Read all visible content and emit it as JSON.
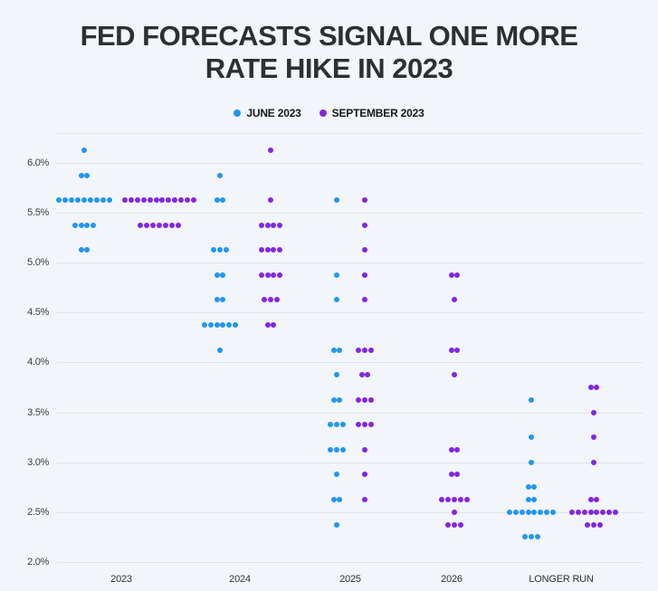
{
  "title": {
    "line1": "FED FORECASTS SIGNAL ONE MORE",
    "line2": "RATE HIKE IN 2023"
  },
  "legend": [
    {
      "label": "JUNE 2023",
      "color": "#2196f3"
    },
    {
      "label": "SEPTEMBER 2023",
      "color": "#8226e3"
    }
  ],
  "chart_data": {
    "type": "scatter",
    "subtype": "fed-dot-plot",
    "title": "FED FORECASTS SIGNAL ONE MORE RATE HIKE IN 2023",
    "legend_position": "top",
    "grid": true,
    "categories": [
      "2023",
      "2024",
      "2025",
      "2026",
      "LONGER RUN"
    ],
    "y_axis": {
      "unit": "%",
      "ylim": [
        2.0,
        6.3
      ],
      "ticks": [
        {
          "label": "6.0%",
          "value": 6.0
        },
        {
          "label": "5.5%",
          "value": 5.5
        },
        {
          "label": "5.0%",
          "value": 5.0
        },
        {
          "label": "4.5%",
          "value": 4.5
        },
        {
          "label": "4.0%",
          "value": 4.0
        },
        {
          "label": "3.5%",
          "value": 3.5
        },
        {
          "label": "3.0%",
          "value": 3.0
        },
        {
          "label": "2.5%",
          "value": 2.5
        },
        {
          "label": "2.0%",
          "value": 2.0
        }
      ]
    },
    "series": [
      {
        "name": "JUNE 2023",
        "color": "#2196f3",
        "points": {
          "2023": [
            {
              "rate": 6.125,
              "n": 1
            },
            {
              "rate": 5.875,
              "n": 2
            },
            {
              "rate": 5.625,
              "n": 9
            },
            {
              "rate": 5.375,
              "n": 4
            },
            {
              "rate": 5.125,
              "n": 2
            }
          ],
          "2024": [
            {
              "rate": 5.875,
              "n": 1
            },
            {
              "rate": 5.625,
              "n": 2
            },
            {
              "rate": 5.125,
              "n": 3
            },
            {
              "rate": 4.875,
              "n": 2
            },
            {
              "rate": 4.625,
              "n": 2
            },
            {
              "rate": 4.375,
              "n": 6
            },
            {
              "rate": 4.125,
              "n": 1
            }
          ],
          "2025": [
            {
              "rate": 5.625,
              "n": 1
            },
            {
              "rate": 4.875,
              "n": 1
            },
            {
              "rate": 4.625,
              "n": 1
            },
            {
              "rate": 4.125,
              "n": 2
            },
            {
              "rate": 3.875,
              "n": 1
            },
            {
              "rate": 3.625,
              "n": 2
            },
            {
              "rate": 3.375,
              "n": 3
            },
            {
              "rate": 3.125,
              "n": 3
            },
            {
              "rate": 2.875,
              "n": 1
            },
            {
              "rate": 2.625,
              "n": 2
            },
            {
              "rate": 2.375,
              "n": 1
            }
          ],
          "2026": [],
          "LONGER RUN": [
            {
              "rate": 3.625,
              "n": 1
            },
            {
              "rate": 3.25,
              "n": 1
            },
            {
              "rate": 3.0,
              "n": 1
            },
            {
              "rate": 2.75,
              "n": 2
            },
            {
              "rate": 2.625,
              "n": 2
            },
            {
              "rate": 2.5,
              "n": 8
            },
            {
              "rate": 2.25,
              "n": 3
            }
          ]
        }
      },
      {
        "name": "SEPTEMBER 2023",
        "color": "#8226e3",
        "points": {
          "2023": [
            {
              "rate": 5.625,
              "n": 12
            },
            {
              "rate": 5.375,
              "n": 7
            }
          ],
          "2024": [
            {
              "rate": 6.125,
              "n": 1
            },
            {
              "rate": 5.625,
              "n": 1
            },
            {
              "rate": 5.375,
              "n": 4
            },
            {
              "rate": 5.125,
              "n": 4
            },
            {
              "rate": 4.875,
              "n": 4
            },
            {
              "rate": 4.625,
              "n": 3
            },
            {
              "rate": 4.375,
              "n": 2
            }
          ],
          "2025": [
            {
              "rate": 5.625,
              "n": 1
            },
            {
              "rate": 5.375,
              "n": 1
            },
            {
              "rate": 5.125,
              "n": 1
            },
            {
              "rate": 4.875,
              "n": 1
            },
            {
              "rate": 4.625,
              "n": 1
            },
            {
              "rate": 4.125,
              "n": 3
            },
            {
              "rate": 3.875,
              "n": 2
            },
            {
              "rate": 3.625,
              "n": 3
            },
            {
              "rate": 3.375,
              "n": 3
            },
            {
              "rate": 3.125,
              "n": 1
            },
            {
              "rate": 2.875,
              "n": 1
            },
            {
              "rate": 2.625,
              "n": 1
            }
          ],
          "2026": [
            {
              "rate": 4.875,
              "n": 2
            },
            {
              "rate": 4.625,
              "n": 1
            },
            {
              "rate": 4.125,
              "n": 2
            },
            {
              "rate": 3.875,
              "n": 1
            },
            {
              "rate": 3.125,
              "n": 2
            },
            {
              "rate": 2.875,
              "n": 2
            },
            {
              "rate": 2.625,
              "n": 5
            },
            {
              "rate": 2.5,
              "n": 1
            },
            {
              "rate": 2.375,
              "n": 3
            }
          ],
          "LONGER RUN": [
            {
              "rate": 3.75,
              "n": 2
            },
            {
              "rate": 3.5,
              "n": 1
            },
            {
              "rate": 3.25,
              "n": 1
            },
            {
              "rate": 3.0,
              "n": 1
            },
            {
              "rate": 2.625,
              "n": 2
            },
            {
              "rate": 2.5,
              "n": 8
            },
            {
              "rate": 2.375,
              "n": 3
            }
          ]
        }
      }
    ]
  }
}
